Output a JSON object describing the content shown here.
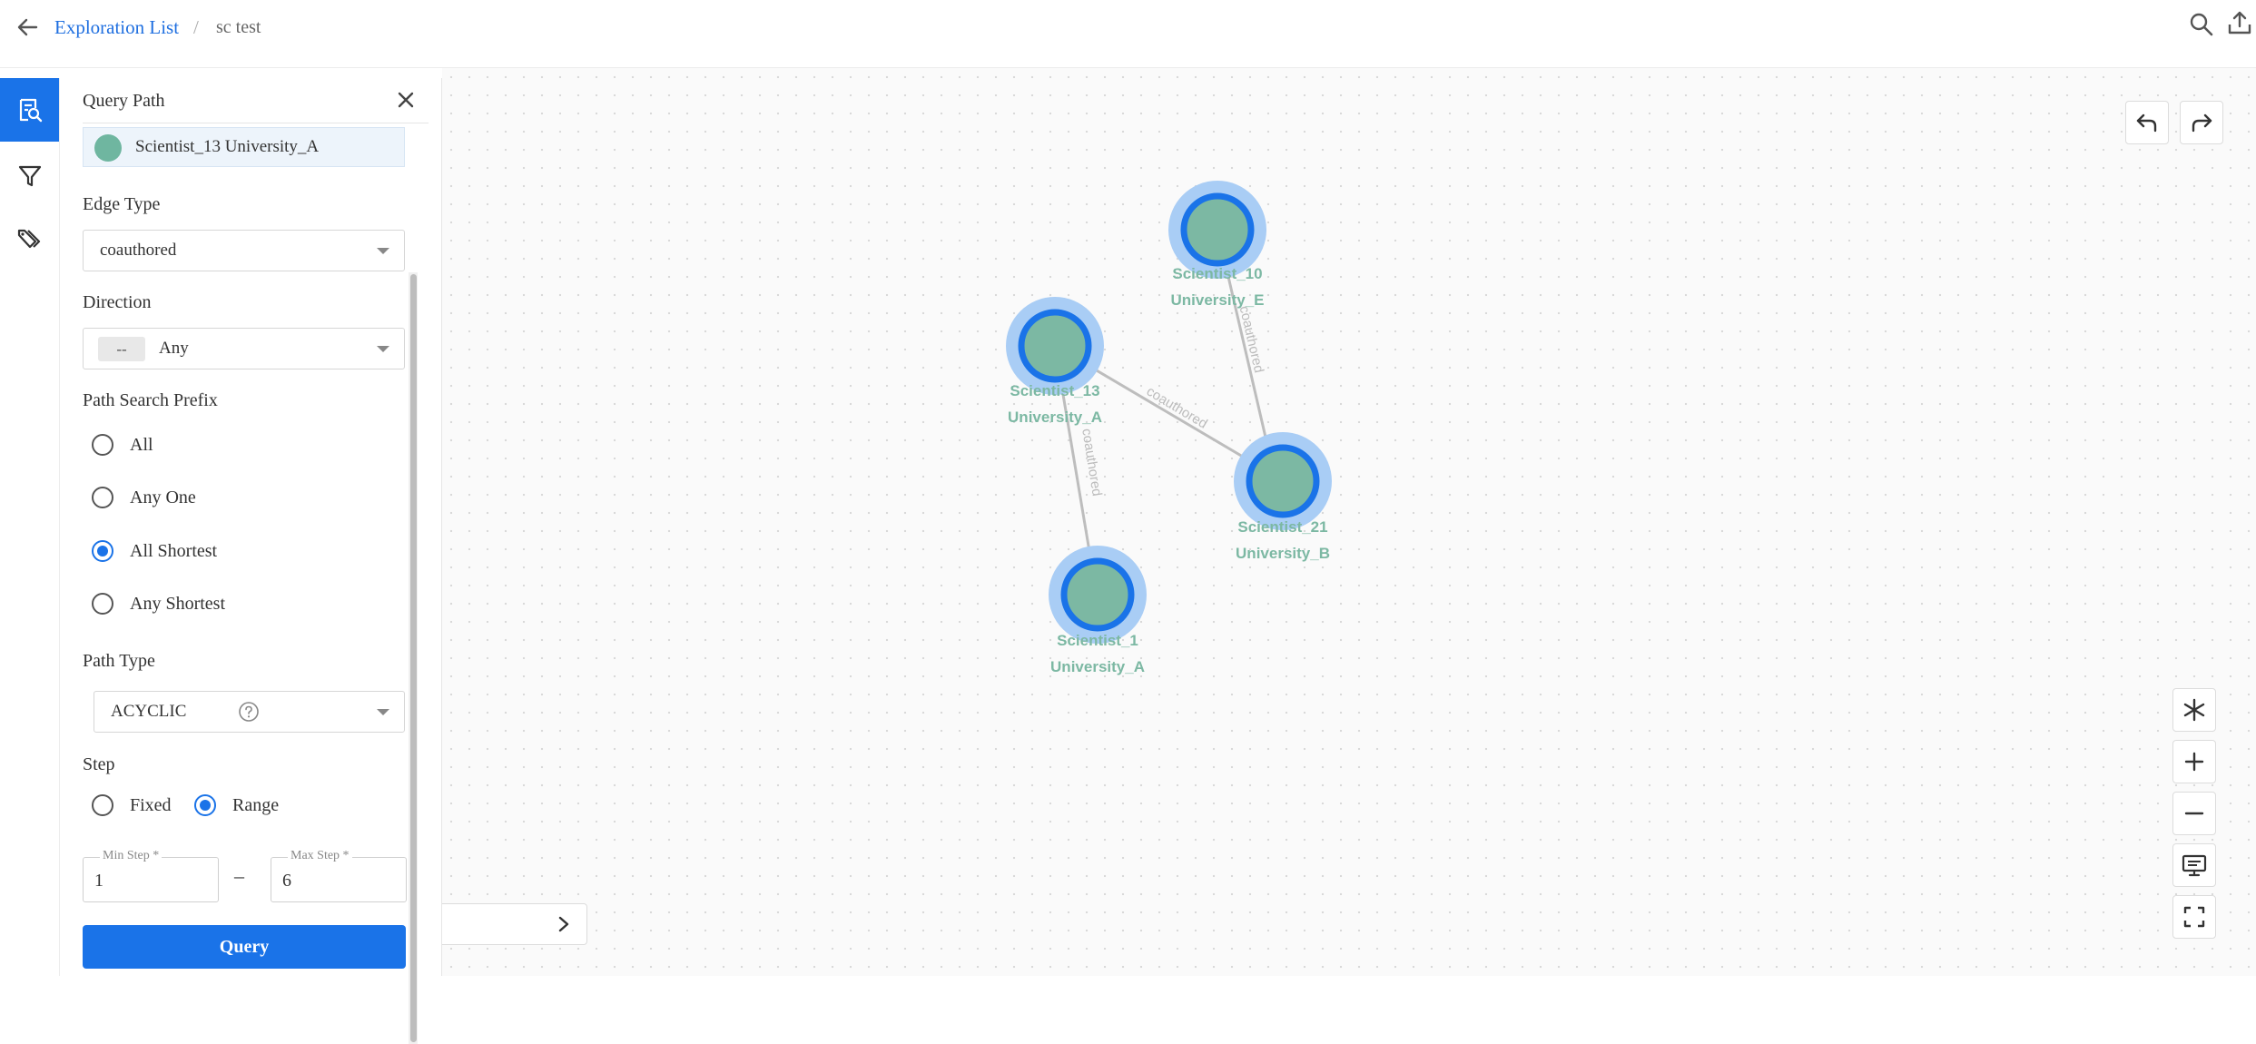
{
  "breadcrumb": {
    "parent": "Exploration List",
    "separator": "/",
    "current": "sc test"
  },
  "panel": {
    "title": "Query Path",
    "start_node": {
      "label": "Scientist_13 University_A",
      "color": "#6fb6a0"
    },
    "edge_type": {
      "label": "Edge Type",
      "value": "coauthored"
    },
    "direction": {
      "label": "Direction",
      "chip": "--",
      "value": "Any"
    },
    "prefix": {
      "label": "Path Search Prefix",
      "options": [
        "All",
        "Any One",
        "All Shortest",
        "Any Shortest"
      ],
      "selected": "All Shortest"
    },
    "path_type": {
      "label": "Path Type",
      "value": "ACYCLIC"
    },
    "step": {
      "label": "Step",
      "options": [
        "Fixed",
        "Range"
      ],
      "selected": "Range",
      "min_label": "Min Step *",
      "min_value": "1",
      "dash": "–",
      "max_label": "Max Step *",
      "max_value": "6"
    },
    "query_button": "Query"
  },
  "graph": {
    "nodes": [
      {
        "id": "s10",
        "line1": "Scientist_10",
        "line2": "University_E"
      },
      {
        "id": "s13",
        "line1": "Scientist_13",
        "line2": "University_A"
      },
      {
        "id": "s21",
        "line1": "Scientist_21",
        "line2": "University_B"
      },
      {
        "id": "s1",
        "line1": "Scientist_1",
        "line2": "University_A"
      }
    ],
    "edges": [
      {
        "from": "s10",
        "to": "s21",
        "label": "coauthored"
      },
      {
        "from": "s13",
        "to": "s21",
        "label": "coauthored"
      },
      {
        "from": "s13",
        "to": "s1",
        "label": "coauthored"
      }
    ],
    "colors": {
      "node_fill": "#7cb8a3",
      "node_ring": "#1a73e8",
      "node_halo": "#a9cdf5",
      "edge": "#bdbdbd"
    }
  },
  "icons": {
    "back": "arrow-left-icon",
    "search": "search-icon",
    "export": "export-icon",
    "rail": [
      "query-path-icon",
      "filter-icon",
      "tag-icon"
    ],
    "undo": "undo-icon",
    "redo": "redo-icon",
    "controls": [
      "layout-icon",
      "zoom-in-icon",
      "zoom-out-icon",
      "presentation-icon",
      "fullscreen-icon"
    ]
  },
  "accent_color": "#1a73e8"
}
